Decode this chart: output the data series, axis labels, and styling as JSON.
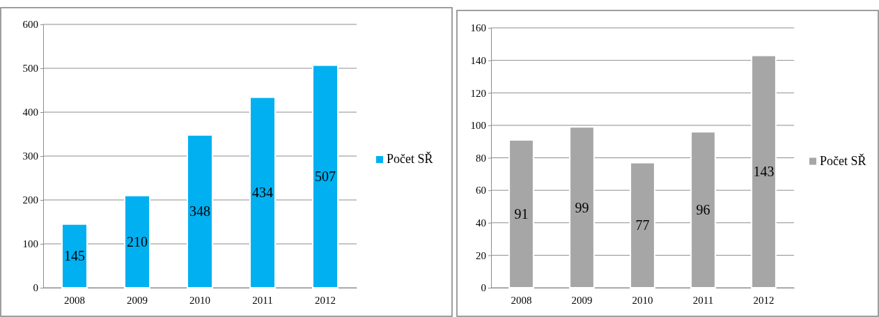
{
  "chart_data": [
    {
      "type": "bar",
      "categories": [
        "2008",
        "2009",
        "2010",
        "2011",
        "2012"
      ],
      "series": [
        {
          "name": "Počet SŘ",
          "color": "#00b0f0",
          "values": [
            145,
            210,
            348,
            434,
            507
          ]
        }
      ],
      "ylim": [
        0,
        600
      ],
      "yticks": [
        0,
        100,
        200,
        300,
        400,
        500,
        600
      ],
      "grid": "y",
      "legend": "right",
      "data_labels": true
    },
    {
      "type": "bar",
      "categories": [
        "2008",
        "2009",
        "2010",
        "2011",
        "2012"
      ],
      "series": [
        {
          "name": "Počet SŘ",
          "color": "#a6a6a6",
          "values": [
            91,
            99,
            77,
            96,
            143
          ]
        }
      ],
      "ylim": [
        0,
        160
      ],
      "yticks": [
        0,
        20,
        40,
        60,
        80,
        100,
        120,
        140,
        160
      ],
      "grid": "y",
      "legend": "right",
      "data_labels": true
    }
  ]
}
